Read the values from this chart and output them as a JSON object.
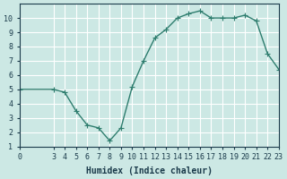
{
  "xlabel": "Humidex (Indice chaleur)",
  "x": [
    0,
    3,
    4,
    5,
    6,
    7,
    8,
    9,
    10,
    11,
    12,
    13,
    14,
    15,
    16,
    17,
    18,
    19,
    20,
    21,
    22,
    23
  ],
  "y": [
    5.0,
    5.0,
    4.8,
    3.5,
    2.5,
    2.3,
    1.4,
    2.3,
    5.2,
    7.0,
    8.6,
    9.2,
    10.0,
    10.3,
    10.5,
    10.0,
    10.0,
    10.0,
    10.2,
    9.8,
    7.5,
    6.4
  ],
  "line_color": "#2e7d6e",
  "marker": "+",
  "bg_color": "#cce8e4",
  "grid_color": "#ffffff",
  "ylim": [
    1,
    11
  ],
  "xlim": [
    0,
    23
  ],
  "yticks": [
    1,
    2,
    3,
    4,
    5,
    6,
    7,
    8,
    9,
    10
  ],
  "xticks": [
    0,
    3,
    4,
    5,
    6,
    7,
    8,
    9,
    10,
    11,
    12,
    13,
    14,
    15,
    16,
    17,
    18,
    19,
    20,
    21,
    22,
    23
  ],
  "xtick_labels": [
    "0",
    "3",
    "4",
    "5",
    "6",
    "7",
    "8",
    "9",
    "10",
    "11",
    "12",
    "13",
    "14",
    "15",
    "16",
    "17",
    "18",
    "19",
    "20",
    "21",
    "22",
    "23"
  ],
  "font_color": "#1a3a4a",
  "tick_fontsize": 6,
  "xlabel_fontsize": 7
}
